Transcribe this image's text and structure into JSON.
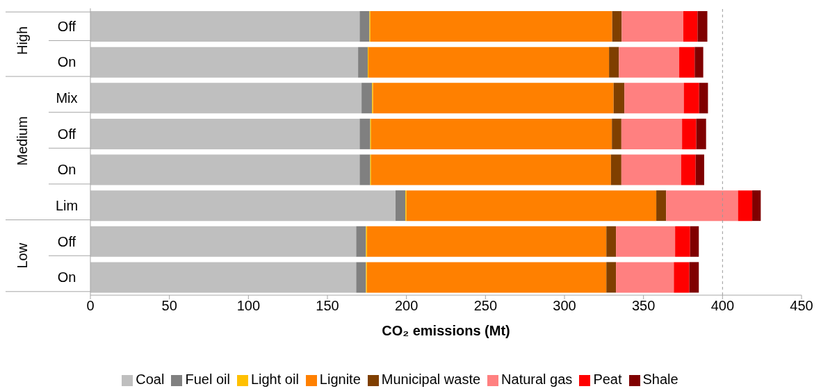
{
  "chart_data": {
    "type": "bar",
    "orientation": "horizontal",
    "stacked": true,
    "categories": [
      "Off",
      "On",
      "Mix",
      "Off",
      "On",
      "Lim",
      "Off",
      "On"
    ],
    "series": [
      {
        "name": "Coal",
        "color": "#bfbfbf",
        "values": [
          170.4,
          169.4,
          171.6,
          170.4,
          170.4,
          193.1,
          168.2,
          168.2
        ]
      },
      {
        "name": "Fuel oil",
        "color": "#808080",
        "values": [
          6.2,
          6.1,
          6.6,
          6.7,
          6.7,
          6.2,
          6.2,
          6.2
        ]
      },
      {
        "name": "Light oil",
        "color": "#ffc000",
        "values": [
          0.6,
          0.5,
          0.7,
          0.6,
          0.6,
          0.7,
          0.7,
          0.6
        ]
      },
      {
        "name": "Lignite",
        "color": "#ff8000",
        "values": [
          153,
          152.2,
          152.2,
          152.3,
          151.7,
          158.1,
          151.4,
          151.5
        ]
      },
      {
        "name": "Municipal waste",
        "color": "#7f3f00",
        "values": [
          6,
          6.2,
          6.8,
          6,
          6.6,
          6.2,
          6.1,
          6.1
        ]
      },
      {
        "name": "Natural gas",
        "color": "#ff8080",
        "values": [
          39,
          38.2,
          37.6,
          38.4,
          37.8,
          45.5,
          37.4,
          36.6
        ]
      },
      {
        "name": "Peat",
        "color": "#ff0000",
        "values": [
          9,
          9.8,
          9.7,
          9,
          9.2,
          9,
          9.5,
          9.8
        ]
      },
      {
        "name": "Shale",
        "color": "#800000",
        "values": [
          6.2,
          5.4,
          5.6,
          6.2,
          5.4,
          5.4,
          5.5,
          6
        ]
      }
    ],
    "xlabel": "CO₂ emissions (Mt)",
    "xlim": [
      0,
      450
    ],
    "xticks": [
      0,
      50,
      100,
      150,
      200,
      250,
      300,
      350,
      400,
      450
    ],
    "ref_lines": [
      {
        "axis": "x",
        "value": 400,
        "color": "#999999",
        "line_style": "dashed"
      }
    ],
    "annotations": [
      "High",
      "Medium",
      "Low"
    ],
    "grid": false,
    "legend": "bottom"
  }
}
